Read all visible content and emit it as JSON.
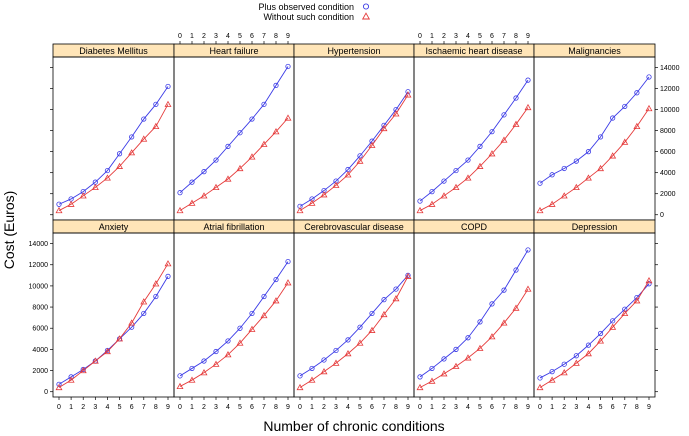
{
  "chart_data": {
    "type": "line",
    "layout": "lattice 5 columns x 2 rows",
    "xlabel": "Number of chronic conditions",
    "ylabel": "Cost (Euros)",
    "x": [
      0,
      1,
      2,
      3,
      4,
      5,
      6,
      7,
      8,
      9
    ],
    "x_ticks": [
      0,
      1,
      2,
      3,
      4,
      5,
      6,
      7,
      8,
      9
    ],
    "ylim": [
      -500,
      15000
    ],
    "y_ticks": [
      0,
      2000,
      4000,
      6000,
      8000,
      10000,
      12000,
      14000
    ],
    "legend": {
      "position": "top-center",
      "entries": [
        {
          "name": "Plus observed condition",
          "color": "#3a3ae6",
          "marker": "circle"
        },
        {
          "name": "Without such condition",
          "color": "#e53a3a",
          "marker": "triangle"
        }
      ]
    },
    "panels": [
      {
        "title": "Diabetes Mellitus",
        "series": [
          {
            "name": "Plus observed condition",
            "values": [
              1000,
              1500,
              2200,
              3100,
              4200,
              5800,
              7400,
              9100,
              10500,
              12200
            ]
          },
          {
            "name": "Without such condition",
            "values": [
              400,
              1000,
              1800,
              2600,
              3500,
              4600,
              5900,
              7200,
              8400,
              10500
            ]
          }
        ]
      },
      {
        "title": "Heart failure",
        "series": [
          {
            "name": "Plus observed condition",
            "values": [
              2100,
              3100,
              4100,
              5200,
              6500,
              7800,
              9100,
              10500,
              12300,
              14100
            ]
          },
          {
            "name": "Without such condition",
            "values": [
              400,
              1100,
              1800,
              2600,
              3400,
              4400,
              5500,
              6700,
              7900,
              9200
            ]
          }
        ]
      },
      {
        "title": "Hypertension",
        "series": [
          {
            "name": "Plus observed condition",
            "values": [
              800,
              1500,
              2300,
              3200,
              4300,
              5600,
              7000,
              8500,
              10000,
              11700
            ]
          },
          {
            "name": "Without such condition",
            "values": [
              400,
              1100,
              1900,
              2800,
              3800,
              5100,
              6600,
              8200,
              9600,
              11400
            ]
          }
        ]
      },
      {
        "title": "Ischaemic heart disease",
        "series": [
          {
            "name": "Plus observed condition",
            "values": [
              1300,
              2200,
              3200,
              4200,
              5200,
              6500,
              7900,
              9500,
              11100,
              12800
            ]
          },
          {
            "name": "Without such condition",
            "values": [
              400,
              1000,
              1800,
              2600,
              3500,
              4600,
              5800,
              7100,
              8600,
              10200
            ]
          }
        ]
      },
      {
        "title": "Malignancies",
        "series": [
          {
            "name": "Plus observed condition",
            "values": [
              3000,
              3800,
              4400,
              5100,
              6000,
              7400,
              9200,
              10300,
              11600,
              13100
            ]
          },
          {
            "name": "Without such condition",
            "values": [
              400,
              1000,
              1800,
              2600,
              3500,
              4400,
              5600,
              6900,
              8400,
              10100
            ]
          }
        ]
      },
      {
        "title": "Anxiety",
        "series": [
          {
            "name": "Plus observed condition",
            "values": [
              700,
              1400,
              2100,
              2900,
              3900,
              5000,
              6100,
              7400,
              9000,
              10900
            ]
          },
          {
            "name": "Without such condition",
            "values": [
              400,
              1100,
              2000,
              2900,
              3800,
              5000,
              6500,
              8500,
              10200,
              12100
            ]
          }
        ]
      },
      {
        "title": "Atrial fibrillation",
        "series": [
          {
            "name": "Plus observed condition",
            "values": [
              1500,
              2200,
              2900,
              3800,
              4800,
              6000,
              7400,
              9000,
              10600,
              12300
            ]
          },
          {
            "name": "Without such condition",
            "values": [
              500,
              1100,
              1800,
              2600,
              3500,
              4600,
              5900,
              7200,
              8600,
              10300
            ]
          }
        ]
      },
      {
        "title": "Cerebrovascular disease",
        "series": [
          {
            "name": "Plus observed condition",
            "values": [
              1500,
              2200,
              3000,
              3900,
              4900,
              6100,
              7400,
              8700,
              9700,
              11000
            ]
          },
          {
            "name": "Without such condition",
            "values": [
              400,
              1100,
              1900,
              2700,
              3600,
              4600,
              5800,
              7300,
              8800,
              10900
            ]
          }
        ]
      },
      {
        "title": "COPD",
        "series": [
          {
            "name": "Plus observed condition",
            "values": [
              1400,
              2200,
              3100,
              4000,
              5100,
              6600,
              8300,
              9600,
              11500,
              13400
            ]
          },
          {
            "name": "Without such condition",
            "values": [
              400,
              1000,
              1700,
              2400,
              3200,
              4100,
              5200,
              6500,
              7900,
              9700
            ]
          }
        ]
      },
      {
        "title": "Depression",
        "series": [
          {
            "name": "Plus observed condition",
            "values": [
              1300,
              1900,
              2600,
              3400,
              4400,
              5500,
              6700,
              7800,
              8900,
              10200
            ]
          },
          {
            "name": "Without such condition",
            "values": [
              400,
              1100,
              1800,
              2700,
              3600,
              4800,
              6100,
              7400,
              8600,
              10500
            ]
          }
        ]
      }
    ]
  }
}
